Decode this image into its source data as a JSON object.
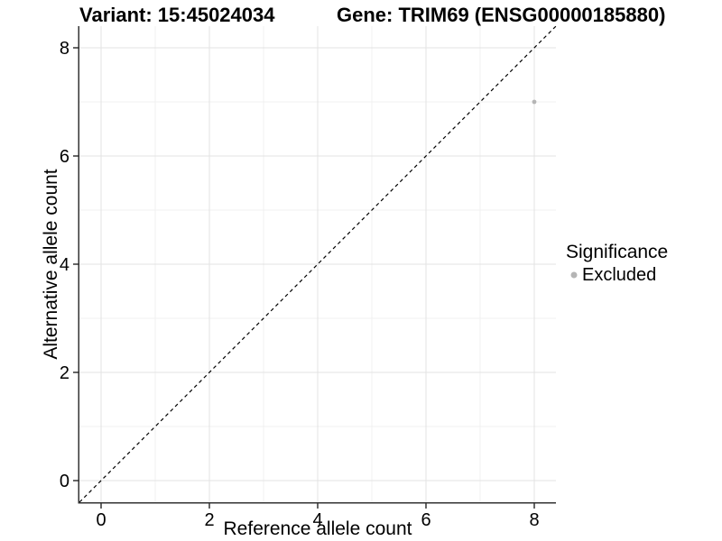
{
  "titles": {
    "variant": "Variant: 15:45024034",
    "gene": "Gene: TRIM69 (ENSG00000185880)"
  },
  "chart_data": {
    "type": "scatter",
    "title_left": "Variant: 15:45024034",
    "title_right": "Gene: TRIM69 (ENSG00000185880)",
    "xlabel": "Reference allele count",
    "ylabel": "Alternative allele count",
    "xlim": [
      -0.4,
      8.4
    ],
    "ylim": [
      -0.4,
      8.4
    ],
    "x_ticks": [
      0,
      2,
      4,
      6,
      8
    ],
    "y_ticks": [
      0,
      2,
      4,
      6,
      8
    ],
    "x_minor_ticks": [
      1,
      3,
      5,
      7
    ],
    "y_minor_ticks": [
      1,
      3,
      5,
      7
    ],
    "grid": "major-and-minor",
    "points": [
      {
        "x": 8,
        "y": 7,
        "series": "Excluded"
      }
    ],
    "identity_line": {
      "type": "y=x",
      "style": "dashed",
      "from": -0.4,
      "to": 8.4
    },
    "legend": {
      "position": "right",
      "title": "Significance",
      "items": [
        {
          "label": "Excluded",
          "color": "#b5b5b5"
        }
      ]
    },
    "colors": {
      "background": "#ffffff",
      "point": "#b5b5b5",
      "grid_major": "#e3e3e3",
      "grid_minor": "#f0f0f0",
      "axis_line": "#333333",
      "tick_text": "#000000",
      "dashed_line": "#000000"
    }
  }
}
